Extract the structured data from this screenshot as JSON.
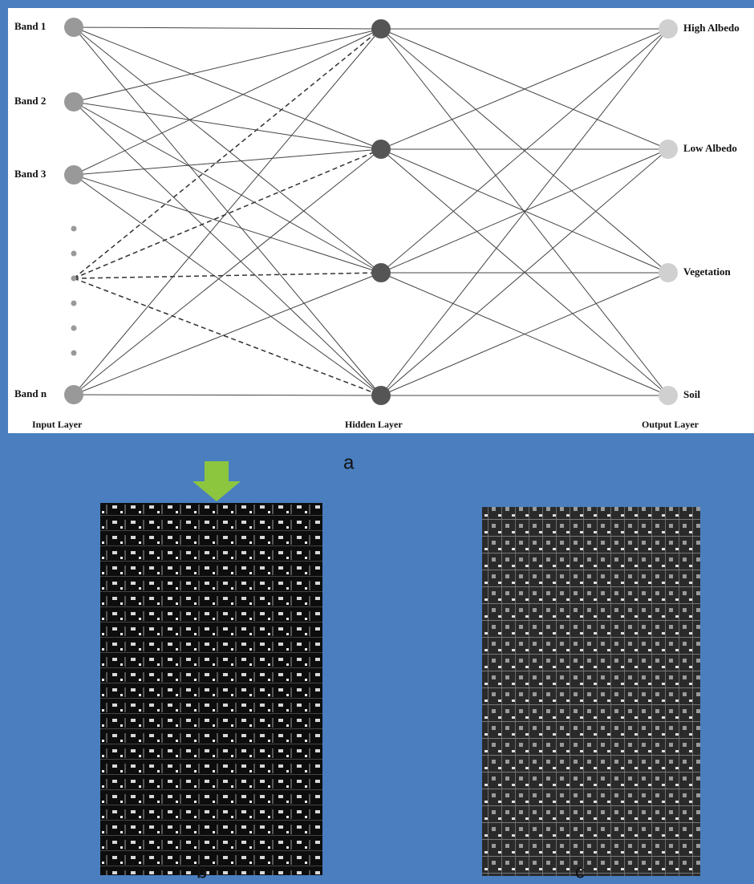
{
  "input_layer": {
    "label": "Input Layer",
    "nodes": [
      "Band 1",
      "Band 2",
      "Band 3",
      "Band n"
    ]
  },
  "hidden_layer": {
    "label": "Hidden Layer"
  },
  "output_layer": {
    "label": "Output Layer",
    "nodes": [
      "High Albedo",
      "Low Albedo",
      "Vegetation",
      "Soil"
    ]
  },
  "panel_labels": [
    "a",
    "b",
    "c"
  ]
}
